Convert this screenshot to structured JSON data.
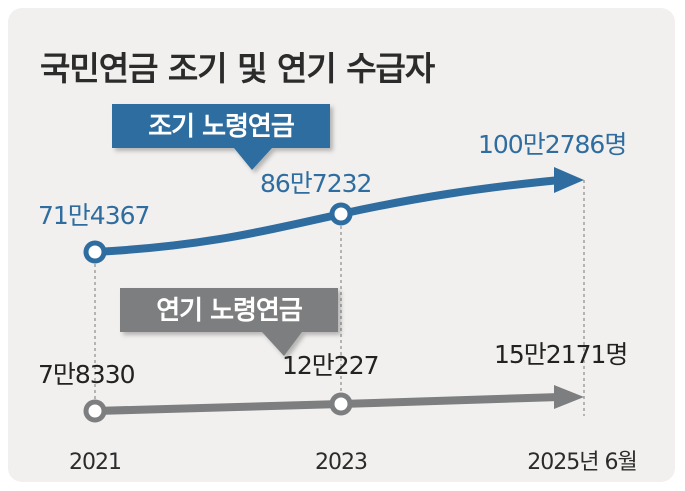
{
  "colors": {
    "early_pension": "#2f6da0",
    "deferred_pension": "#7d7e7f",
    "background": "#f1f0ee",
    "text": "#2b2b2b"
  },
  "chart_data": {
    "type": "line",
    "title": "국민연금 조기 및 연기 수급자",
    "categories": [
      "2021",
      "2023",
      "2025년 6월"
    ],
    "series": [
      {
        "name": "조기 노령연금",
        "values": [
          714367,
          867232,
          1002786
        ],
        "labels": [
          "71만4367",
          "86만7232",
          "100만2786명"
        ]
      },
      {
        "name": "연기 노령연금",
        "values": [
          78330,
          120227,
          152171
        ],
        "labels": [
          "7만8330",
          "12만227",
          "15만2171명"
        ]
      }
    ],
    "grid": false,
    "legend": "inline callouts on lines"
  }
}
